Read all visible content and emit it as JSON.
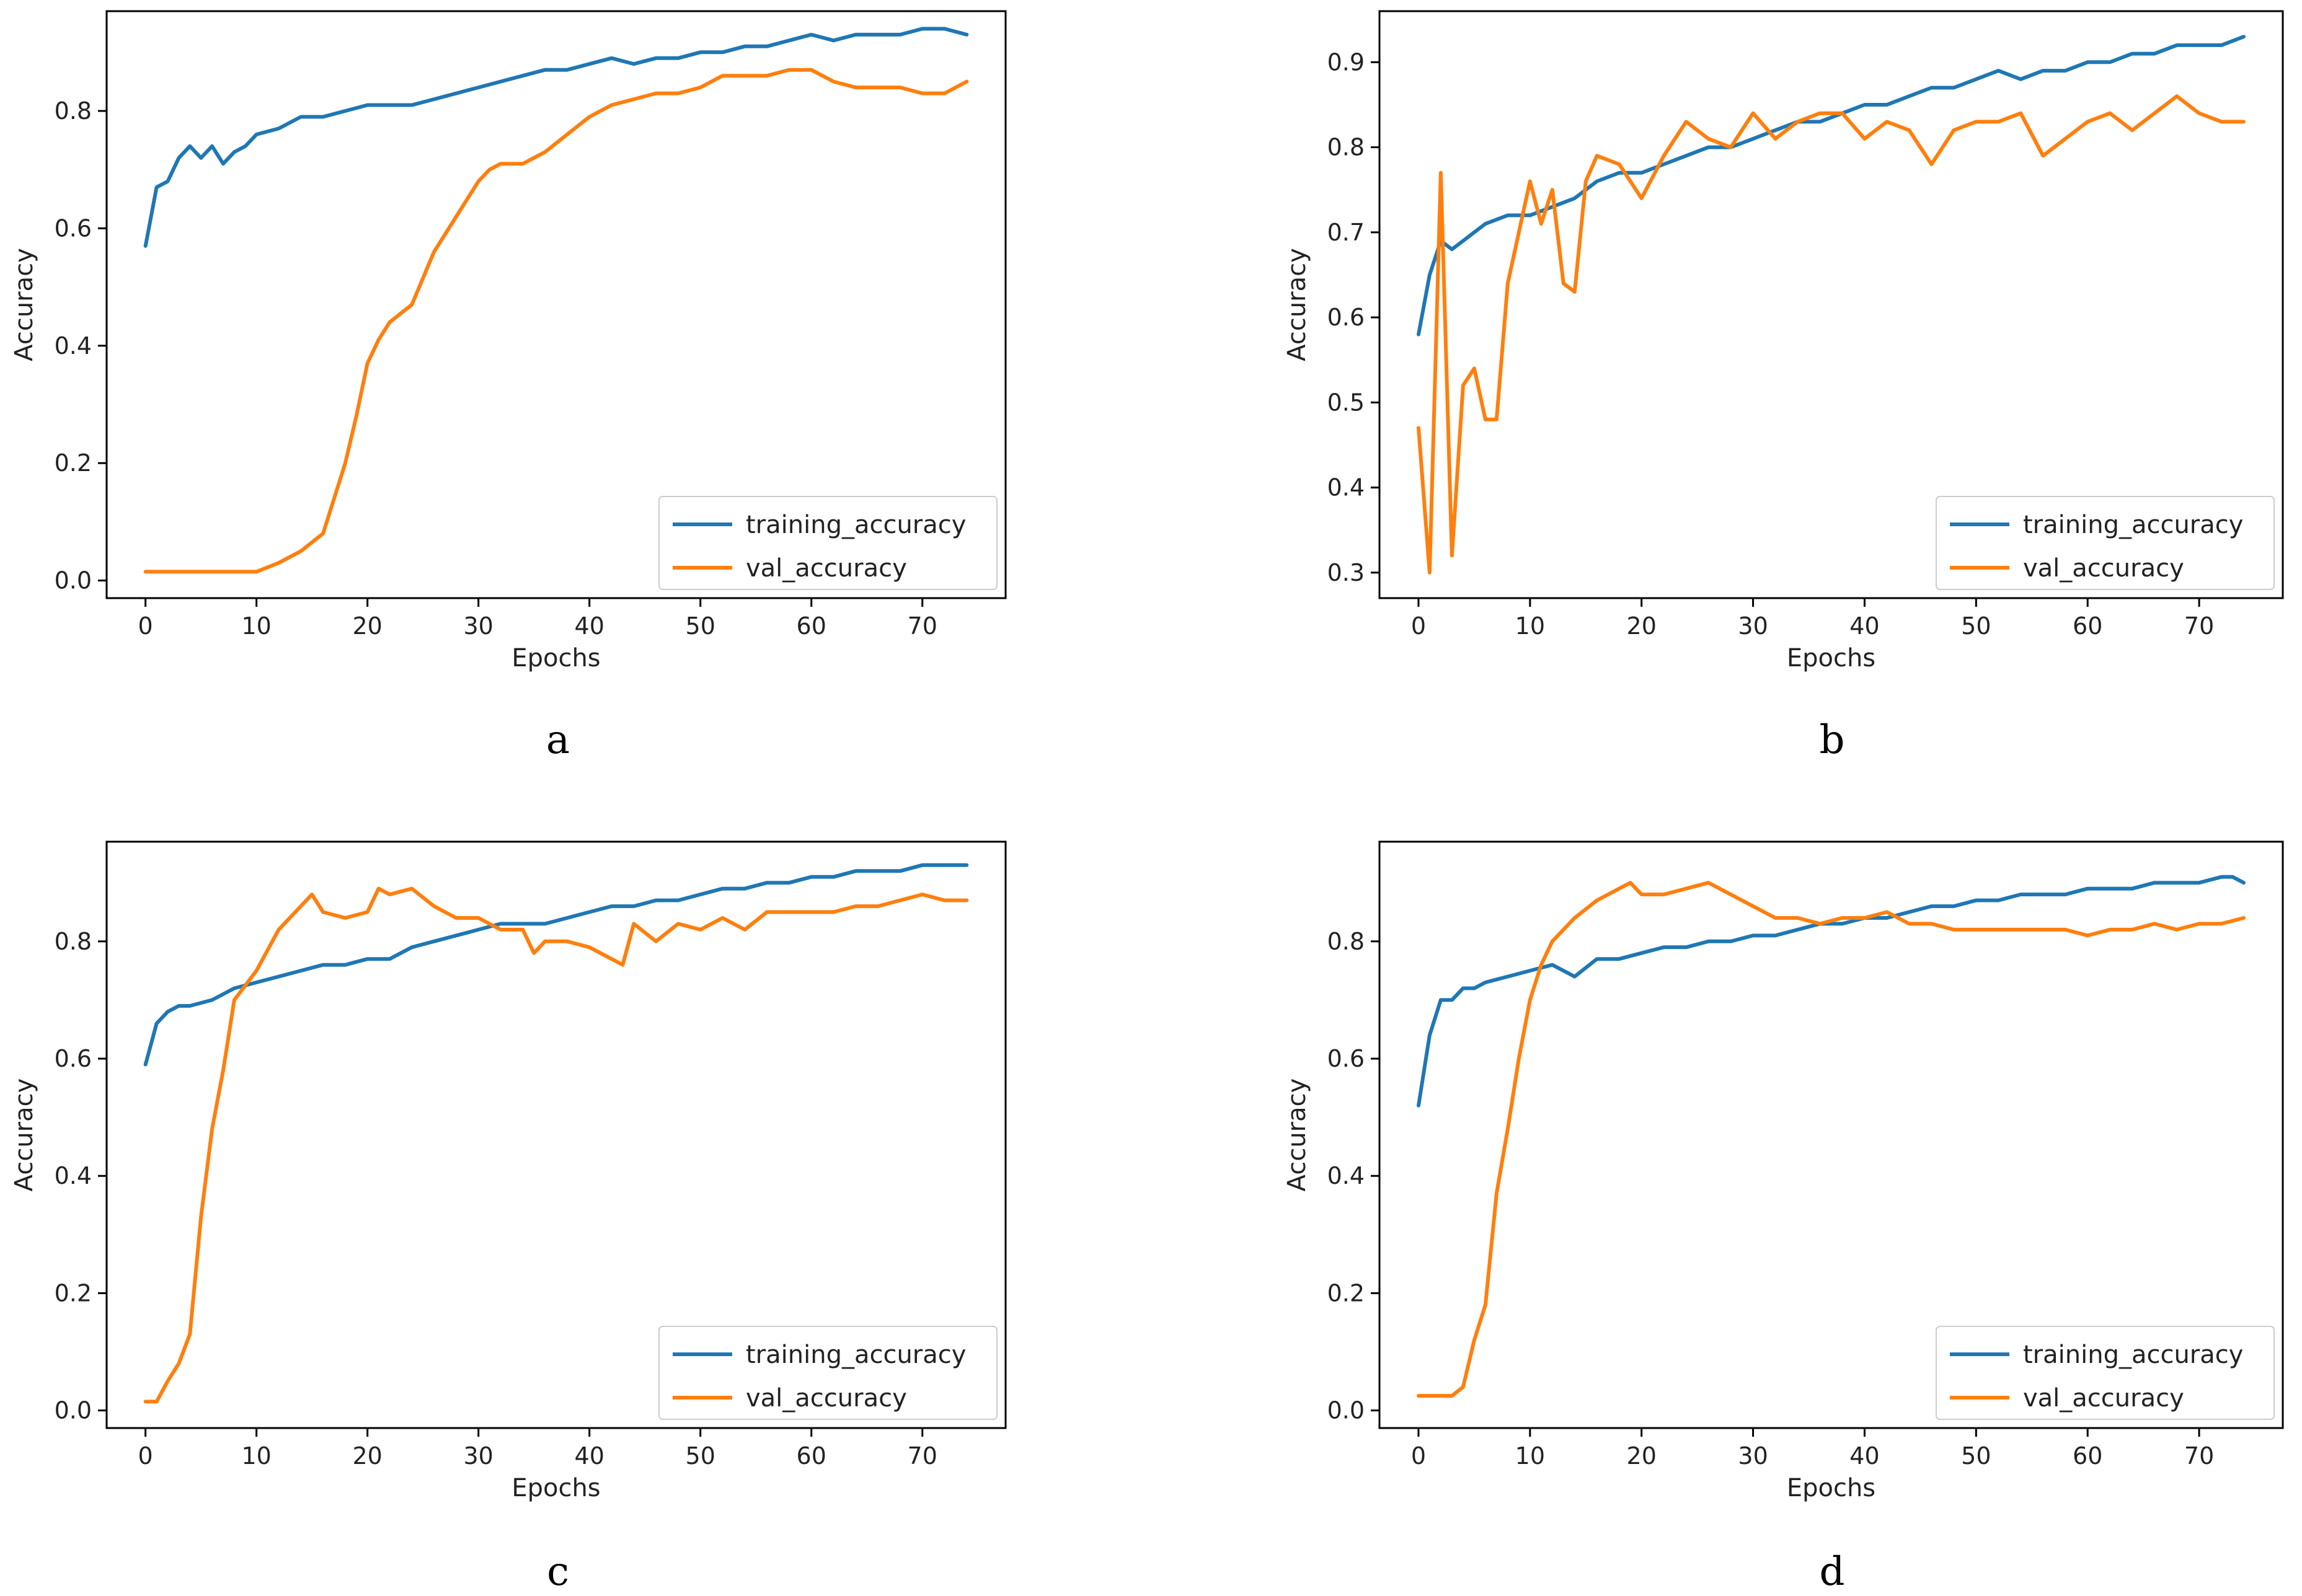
{
  "colors": {
    "training": "#1f77b4",
    "validation": "#ff7f0e",
    "axis": "#000000",
    "text": "#222222"
  },
  "chart_data": [
    {
      "type": "line",
      "panel_label": "a",
      "xlabel": "Epochs",
      "ylabel": "Accuracy",
      "xlim": [
        -3.5,
        77.5
      ],
      "ylim": [
        -0.03,
        0.97
      ],
      "xticks": [
        0,
        10,
        20,
        30,
        40,
        50,
        60,
        70
      ],
      "xtick_labels": [
        "0",
        "10",
        "20",
        "30",
        "40",
        "50",
        "60",
        "70"
      ],
      "yticks": [
        0.0,
        0.2,
        0.4,
        0.6,
        0.8
      ],
      "ytick_labels": [
        "0.0",
        "0.2",
        "0.4",
        "0.6",
        "0.8"
      ],
      "legend_position": "lower-right",
      "series": [
        {
          "name": "training_accuracy",
          "color": "#1f77b4",
          "x": [
            0,
            1,
            2,
            3,
            4,
            5,
            6,
            7,
            8,
            9,
            10,
            12,
            14,
            16,
            18,
            20,
            22,
            24,
            26,
            28,
            30,
            32,
            34,
            36,
            38,
            40,
            42,
            44,
            46,
            48,
            50,
            52,
            54,
            56,
            58,
            60,
            62,
            64,
            66,
            68,
            70,
            72,
            74
          ],
          "y": [
            0.57,
            0.67,
            0.68,
            0.72,
            0.74,
            0.72,
            0.74,
            0.71,
            0.73,
            0.74,
            0.76,
            0.77,
            0.79,
            0.79,
            0.8,
            0.81,
            0.81,
            0.81,
            0.82,
            0.83,
            0.84,
            0.85,
            0.86,
            0.87,
            0.87,
            0.88,
            0.89,
            0.88,
            0.89,
            0.89,
            0.9,
            0.9,
            0.91,
            0.91,
            0.92,
            0.93,
            0.92,
            0.93,
            0.93,
            0.93,
            0.94,
            0.94,
            0.93
          ]
        },
        {
          "name": "val_accuracy",
          "color": "#ff7f0e",
          "x": [
            0,
            5,
            10,
            12,
            14,
            16,
            18,
            19,
            20,
            21,
            22,
            24,
            26,
            28,
            30,
            31,
            32,
            34,
            36,
            38,
            40,
            42,
            44,
            46,
            48,
            50,
            52,
            54,
            56,
            58,
            60,
            62,
            64,
            66,
            68,
            70,
            72,
            74
          ],
          "y": [
            0.015,
            0.015,
            0.015,
            0.03,
            0.05,
            0.08,
            0.2,
            0.28,
            0.37,
            0.41,
            0.44,
            0.47,
            0.56,
            0.62,
            0.68,
            0.7,
            0.71,
            0.71,
            0.73,
            0.76,
            0.79,
            0.81,
            0.82,
            0.83,
            0.83,
            0.84,
            0.86,
            0.86,
            0.86,
            0.87,
            0.87,
            0.85,
            0.84,
            0.84,
            0.84,
            0.83,
            0.83,
            0.85
          ]
        }
      ]
    },
    {
      "type": "line",
      "panel_label": "b",
      "xlabel": "Epochs",
      "ylabel": "Accuracy",
      "xlim": [
        -3.5,
        77.5
      ],
      "ylim": [
        0.27,
        0.96
      ],
      "xticks": [
        0,
        10,
        20,
        30,
        40,
        50,
        60,
        70
      ],
      "xtick_labels": [
        "0",
        "10",
        "20",
        "30",
        "40",
        "50",
        "60",
        "70"
      ],
      "yticks": [
        0.3,
        0.4,
        0.5,
        0.6,
        0.7,
        0.8,
        0.9
      ],
      "ytick_labels": [
        "0.3",
        "0.4",
        "0.5",
        "0.6",
        "0.7",
        "0.8",
        "0.9"
      ],
      "legend_position": "lower-right",
      "series": [
        {
          "name": "training_accuracy",
          "color": "#1f77b4",
          "x": [
            0,
            1,
            2,
            3,
            4,
            5,
            6,
            8,
            10,
            12,
            14,
            16,
            18,
            20,
            22,
            24,
            26,
            28,
            30,
            32,
            34,
            36,
            38,
            40,
            42,
            44,
            46,
            48,
            50,
            52,
            54,
            56,
            58,
            60,
            62,
            64,
            66,
            68,
            70,
            72,
            74
          ],
          "y": [
            0.58,
            0.65,
            0.69,
            0.68,
            0.69,
            0.7,
            0.71,
            0.72,
            0.72,
            0.73,
            0.74,
            0.76,
            0.77,
            0.77,
            0.78,
            0.79,
            0.8,
            0.8,
            0.81,
            0.82,
            0.83,
            0.83,
            0.84,
            0.85,
            0.85,
            0.86,
            0.87,
            0.87,
            0.88,
            0.89,
            0.88,
            0.89,
            0.89,
            0.9,
            0.9,
            0.91,
            0.91,
            0.92,
            0.92,
            0.92,
            0.93
          ]
        },
        {
          "name": "val_accuracy",
          "color": "#ff7f0e",
          "x": [
            0,
            1,
            2,
            3,
            4,
            5,
            6,
            7,
            8,
            10,
            11,
            12,
            13,
            14,
            15,
            16,
            18,
            20,
            22,
            24,
            26,
            28,
            30,
            32,
            34,
            36,
            38,
            40,
            42,
            44,
            46,
            48,
            50,
            52,
            54,
            56,
            58,
            60,
            62,
            64,
            66,
            68,
            70,
            72,
            74
          ],
          "y": [
            0.47,
            0.3,
            0.77,
            0.32,
            0.52,
            0.54,
            0.48,
            0.48,
            0.64,
            0.76,
            0.71,
            0.75,
            0.64,
            0.63,
            0.76,
            0.79,
            0.78,
            0.74,
            0.79,
            0.83,
            0.81,
            0.8,
            0.84,
            0.81,
            0.83,
            0.84,
            0.84,
            0.81,
            0.83,
            0.82,
            0.78,
            0.82,
            0.83,
            0.83,
            0.84,
            0.79,
            0.81,
            0.83,
            0.84,
            0.82,
            0.84,
            0.86,
            0.84,
            0.83,
            0.83
          ]
        }
      ]
    },
    {
      "type": "line",
      "panel_label": "c",
      "xlabel": "Epochs",
      "ylabel": "Accuracy",
      "xlim": [
        -3.5,
        77.5
      ],
      "ylim": [
        -0.03,
        0.97
      ],
      "xticks": [
        0,
        10,
        20,
        30,
        40,
        50,
        60,
        70
      ],
      "xtick_labels": [
        "0",
        "10",
        "20",
        "30",
        "40",
        "50",
        "60",
        "70"
      ],
      "yticks": [
        0.0,
        0.2,
        0.4,
        0.6,
        0.8
      ],
      "ytick_labels": [
        "0.0",
        "0.2",
        "0.4",
        "0.6",
        "0.8"
      ],
      "legend_position": "lower-right",
      "series": [
        {
          "name": "training_accuracy",
          "color": "#1f77b4",
          "x": [
            0,
            1,
            2,
            3,
            4,
            6,
            8,
            10,
            12,
            14,
            16,
            18,
            20,
            22,
            24,
            26,
            28,
            30,
            32,
            34,
            36,
            38,
            40,
            42,
            44,
            46,
            48,
            50,
            52,
            54,
            56,
            58,
            60,
            62,
            64,
            66,
            68,
            70,
            72,
            74
          ],
          "y": [
            0.59,
            0.66,
            0.68,
            0.69,
            0.69,
            0.7,
            0.72,
            0.73,
            0.74,
            0.75,
            0.76,
            0.76,
            0.77,
            0.77,
            0.79,
            0.8,
            0.81,
            0.82,
            0.83,
            0.83,
            0.83,
            0.84,
            0.85,
            0.86,
            0.86,
            0.87,
            0.87,
            0.88,
            0.89,
            0.89,
            0.9,
            0.9,
            0.91,
            0.91,
            0.92,
            0.92,
            0.92,
            0.93,
            0.93,
            0.93
          ]
        },
        {
          "name": "val_accuracy",
          "color": "#ff7f0e",
          "x": [
            0,
            1,
            2,
            3,
            4,
            5,
            6,
            7,
            8,
            10,
            12,
            14,
            15,
            16,
            18,
            20,
            21,
            22,
            24,
            26,
            28,
            30,
            32,
            34,
            35,
            36,
            38,
            40,
            42,
            43,
            44,
            46,
            48,
            50,
            52,
            54,
            56,
            58,
            60,
            62,
            64,
            66,
            68,
            70,
            72,
            74
          ],
          "y": [
            0.015,
            0.015,
            0.05,
            0.08,
            0.13,
            0.33,
            0.48,
            0.58,
            0.7,
            0.75,
            0.82,
            0.86,
            0.88,
            0.85,
            0.84,
            0.85,
            0.89,
            0.88,
            0.89,
            0.86,
            0.84,
            0.84,
            0.82,
            0.82,
            0.78,
            0.8,
            0.8,
            0.79,
            0.77,
            0.76,
            0.83,
            0.8,
            0.83,
            0.82,
            0.84,
            0.82,
            0.85,
            0.85,
            0.85,
            0.85,
            0.86,
            0.86,
            0.87,
            0.88,
            0.87,
            0.87
          ]
        }
      ]
    },
    {
      "type": "line",
      "panel_label": "d",
      "xlabel": "Epochs",
      "ylabel": "Accuracy",
      "xlim": [
        -3.5,
        77.5
      ],
      "ylim": [
        -0.03,
        0.97
      ],
      "xticks": [
        0,
        10,
        20,
        30,
        40,
        50,
        60,
        70
      ],
      "xtick_labels": [
        "0",
        "10",
        "20",
        "30",
        "40",
        "50",
        "60",
        "70"
      ],
      "yticks": [
        0.0,
        0.2,
        0.4,
        0.6,
        0.8
      ],
      "ytick_labels": [
        "0.0",
        "0.2",
        "0.4",
        "0.6",
        "0.8"
      ],
      "legend_position": "lower-right",
      "series": [
        {
          "name": "training_accuracy",
          "color": "#1f77b4",
          "x": [
            0,
            1,
            2,
            3,
            4,
            5,
            6,
            8,
            10,
            12,
            14,
            16,
            18,
            20,
            22,
            24,
            26,
            28,
            30,
            32,
            34,
            36,
            38,
            40,
            42,
            44,
            46,
            48,
            50,
            52,
            54,
            56,
            58,
            60,
            62,
            64,
            66,
            68,
            70,
            72,
            73,
            74
          ],
          "y": [
            0.52,
            0.64,
            0.7,
            0.7,
            0.72,
            0.72,
            0.73,
            0.74,
            0.75,
            0.76,
            0.74,
            0.77,
            0.77,
            0.78,
            0.79,
            0.79,
            0.8,
            0.8,
            0.81,
            0.81,
            0.82,
            0.83,
            0.83,
            0.84,
            0.84,
            0.85,
            0.86,
            0.86,
            0.87,
            0.87,
            0.88,
            0.88,
            0.88,
            0.89,
            0.89,
            0.89,
            0.9,
            0.9,
            0.9,
            0.91,
            0.91,
            0.9
          ]
        },
        {
          "name": "val_accuracy",
          "color": "#ff7f0e",
          "x": [
            0,
            2,
            3,
            4,
            5,
            6,
            7,
            8,
            9,
            10,
            11,
            12,
            14,
            16,
            18,
            19,
            20,
            22,
            24,
            26,
            28,
            30,
            32,
            34,
            36,
            38,
            40,
            42,
            44,
            46,
            48,
            50,
            52,
            54,
            56,
            58,
            60,
            62,
            64,
            66,
            68,
            70,
            72,
            74
          ],
          "y": [
            0.025,
            0.025,
            0.025,
            0.04,
            0.12,
            0.18,
            0.37,
            0.48,
            0.6,
            0.7,
            0.76,
            0.8,
            0.84,
            0.87,
            0.89,
            0.9,
            0.88,
            0.88,
            0.89,
            0.9,
            0.88,
            0.86,
            0.84,
            0.84,
            0.83,
            0.84,
            0.84,
            0.85,
            0.83,
            0.83,
            0.82,
            0.82,
            0.82,
            0.82,
            0.82,
            0.82,
            0.81,
            0.82,
            0.82,
            0.83,
            0.82,
            0.83,
            0.83,
            0.84
          ]
        }
      ]
    }
  ]
}
